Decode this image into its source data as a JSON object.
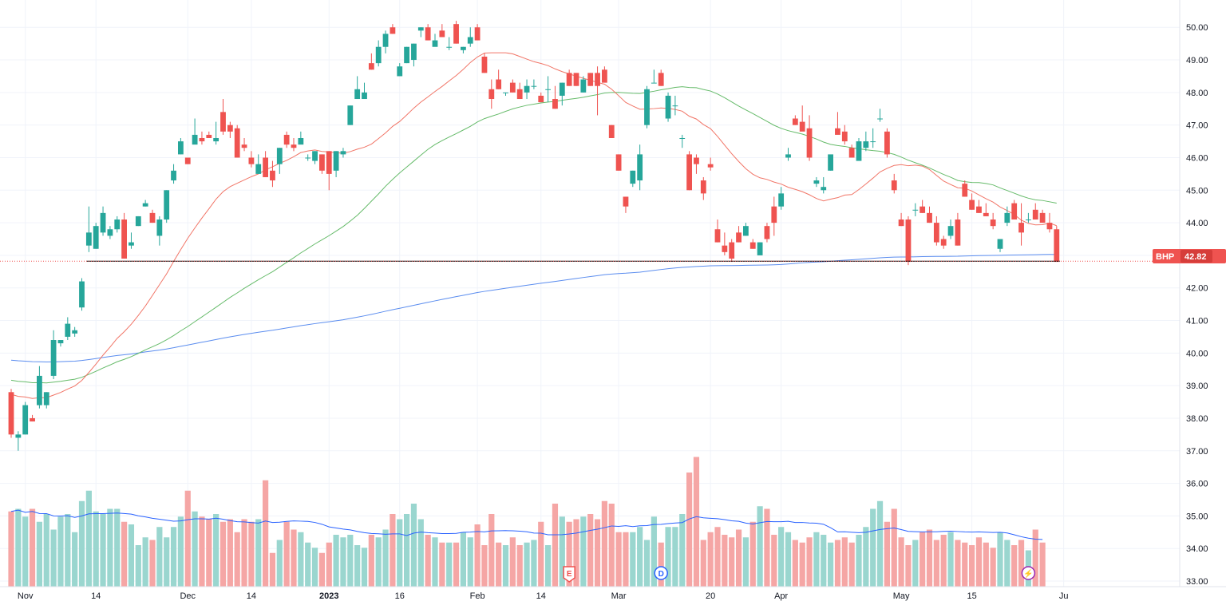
{
  "chart_data": {
    "type": "candlestick",
    "symbol": "BHP",
    "last_price": "42.82",
    "colors": {
      "up": "#26a69a",
      "down": "#ef5350",
      "up_volume": "#9ad6cf",
      "down_volume": "#f5a6a5",
      "ma_fast": "#f17567",
      "ma_mid": "#66bb6a",
      "ma_slow": "#5b8def",
      "volume_ma": "#2962ff",
      "grid": "#f0f3fa",
      "last_price_line": "#000000",
      "badge": "#ef5350"
    },
    "y_range": [
      33.0,
      50.3
    ],
    "y_ticks": [
      "50.00",
      "49.00",
      "48.00",
      "47.00",
      "46.00",
      "45.00",
      "44.00",
      "43.00",
      "42.00",
      "41.00",
      "40.00",
      "39.00",
      "38.00",
      "37.00",
      "36.00",
      "35.00",
      "34.00",
      "33.00"
    ],
    "x_ticks": [
      {
        "label": "Nov",
        "i": 2,
        "bold": false
      },
      {
        "label": "14",
        "i": 12,
        "bold": false
      },
      {
        "label": "Dec",
        "i": 25,
        "bold": false
      },
      {
        "label": "14",
        "i": 34,
        "bold": false
      },
      {
        "label": "2023",
        "i": 45,
        "bold": true
      },
      {
        "label": "16",
        "i": 55,
        "bold": false
      },
      {
        "label": "Feb",
        "i": 66,
        "bold": false
      },
      {
        "label": "14",
        "i": 75,
        "bold": false
      },
      {
        "label": "Mar",
        "i": 86,
        "bold": false
      },
      {
        "label": "20",
        "i": 99,
        "bold": false
      },
      {
        "label": "Apr",
        "i": 109,
        "bold": false
      },
      {
        "label": "May",
        "i": 126,
        "bold": false
      },
      {
        "label": "15",
        "i": 136,
        "bold": false
      },
      {
        "label": "Ju",
        "i": 149,
        "bold": false
      }
    ],
    "events": [
      {
        "label": "E",
        "i": 79
      },
      {
        "label": "D",
        "i": 92
      },
      {
        "label": "⚡",
        "i": 144
      }
    ],
    "ohlc": [
      [
        38.8,
        38.9,
        37.4,
        37.5
      ],
      [
        37.4,
        37.6,
        37.0,
        37.5
      ],
      [
        37.5,
        38.5,
        37.5,
        38.4
      ],
      [
        38.0,
        38.1,
        37.9,
        37.9
      ],
      [
        38.4,
        39.6,
        38.3,
        39.3
      ],
      [
        38.4,
        38.8,
        38.3,
        38.8
      ],
      [
        39.3,
        40.7,
        39.2,
        40.4
      ],
      [
        40.3,
        40.4,
        40.2,
        40.4
      ],
      [
        40.5,
        41.1,
        40.4,
        40.9
      ],
      [
        40.6,
        40.8,
        40.5,
        40.7
      ],
      [
        41.4,
        42.3,
        41.3,
        42.2
      ],
      [
        43.3,
        44.5,
        43.1,
        43.7
      ],
      [
        43.2,
        44.0,
        43.2,
        43.9
      ],
      [
        43.7,
        44.5,
        43.6,
        44.3
      ],
      [
        43.6,
        43.9,
        43.5,
        43.8
      ],
      [
        43.8,
        44.2,
        43.7,
        44.1
      ],
      [
        44.1,
        44.3,
        42.9,
        42.9
      ],
      [
        43.3,
        43.7,
        43.2,
        43.4
      ],
      [
        43.9,
        44.2,
        43.9,
        44.2
      ],
      [
        44.5,
        44.7,
        44.5,
        44.6
      ],
      [
        44.3,
        44.4,
        44.0,
        44.0
      ],
      [
        43.6,
        44.2,
        43.3,
        44.1
      ],
      [
        44.1,
        45.0,
        44.0,
        45.0
      ],
      [
        45.3,
        45.8,
        45.2,
        45.6
      ],
      [
        46.1,
        46.6,
        46.1,
        46.5
      ],
      [
        46.0,
        46.0,
        45.8,
        45.8
      ],
      [
        46.4,
        47.2,
        46.5,
        46.7
      ],
      [
        46.6,
        46.8,
        46.4,
        46.5
      ],
      [
        46.7,
        46.8,
        46.6,
        46.6
      ],
      [
        46.5,
        47.1,
        46.4,
        46.6
      ],
      [
        47.4,
        47.8,
        46.7,
        46.8
      ],
      [
        47.0,
        47.1,
        46.6,
        46.8
      ],
      [
        46.9,
        47.0,
        46.0,
        46.0
      ],
      [
        46.4,
        46.6,
        46.2,
        46.3
      ],
      [
        46.0,
        46.2,
        45.7,
        45.8
      ],
      [
        45.5,
        46.1,
        45.5,
        45.8
      ],
      [
        46.0,
        46.2,
        45.4,
        45.4
      ],
      [
        45.6,
        45.9,
        45.1,
        45.3
      ],
      [
        45.8,
        46.3,
        45.5,
        46.3
      ],
      [
        46.7,
        46.8,
        46.3,
        46.4
      ],
      [
        46.4,
        46.6,
        46.2,
        46.3
      ],
      [
        46.4,
        46.8,
        46.5,
        46.6
      ],
      [
        46.0,
        46.1,
        45.9,
        46.0
      ],
      [
        45.9,
        46.2,
        45.8,
        46.2
      ],
      [
        46.1,
        46.1,
        45.5,
        45.6
      ],
      [
        46.2,
        46.2,
        45.0,
        45.5
      ],
      [
        45.6,
        46.2,
        45.4,
        46.2
      ],
      [
        46.1,
        46.3,
        46.0,
        46.2
      ],
      [
        47.0,
        47.6,
        47.0,
        47.6
      ],
      [
        47.8,
        48.5,
        47.8,
        48.1
      ],
      [
        47.8,
        48.3,
        47.8,
        48.0
      ],
      [
        48.9,
        49.2,
        48.7,
        48.7
      ],
      [
        48.9,
        49.6,
        48.8,
        49.4
      ],
      [
        49.4,
        49.9,
        49.2,
        49.8
      ],
      [
        50.0,
        50.1,
        49.8,
        49.8
      ],
      [
        48.5,
        48.9,
        48.5,
        48.8
      ],
      [
        48.9,
        49.4,
        48.9,
        49.4
      ],
      [
        49.0,
        49.5,
        48.8,
        49.5
      ],
      [
        49.9,
        50.0,
        49.7,
        50.0
      ],
      [
        50.0,
        50.1,
        49.6,
        49.6
      ],
      [
        49.4,
        49.8,
        49.5,
        49.6
      ],
      [
        49.9,
        50.1,
        49.7,
        49.7
      ],
      [
        49.4,
        49.7,
        49.3,
        49.4
      ],
      [
        50.1,
        50.2,
        49.5,
        49.5
      ],
      [
        49.3,
        49.4,
        49.2,
        49.4
      ],
      [
        49.5,
        50.0,
        49.4,
        49.7
      ],
      [
        50.0,
        50.1,
        49.6,
        49.6
      ],
      [
        49.1,
        49.2,
        48.6,
        48.6
      ],
      [
        48.1,
        48.4,
        47.5,
        47.8
      ],
      [
        48.4,
        48.7,
        48.1,
        48.1
      ],
      [
        48.0,
        48.0,
        47.9,
        48.0
      ],
      [
        48.3,
        48.4,
        48.0,
        48.0
      ],
      [
        48.1,
        48.3,
        47.8,
        47.8
      ],
      [
        48.0,
        48.4,
        47.8,
        48.2
      ],
      [
        48.2,
        48.4,
        48.1,
        48.2
      ],
      [
        47.9,
        48.0,
        47.7,
        47.7
      ],
      [
        48.1,
        48.5,
        47.7,
        48.1
      ],
      [
        47.8,
        48.2,
        47.5,
        47.5
      ],
      [
        47.9,
        48.3,
        47.6,
        48.3
      ],
      [
        48.6,
        48.7,
        48.2,
        48.2
      ],
      [
        48.6,
        48.6,
        48.2,
        48.2
      ],
      [
        48.0,
        48.5,
        48.0,
        48.4
      ],
      [
        48.6,
        48.6,
        48.2,
        48.2
      ],
      [
        48.6,
        48.8,
        47.3,
        48.2
      ],
      [
        48.7,
        48.8,
        48.4,
        48.3
      ],
      [
        47.0,
        47.0,
        46.6,
        46.6
      ],
      [
        46.1,
        46.1,
        45.6,
        45.6
      ],
      [
        44.8,
        44.8,
        44.3,
        44.5
      ],
      [
        45.2,
        45.6,
        45.1,
        45.6
      ],
      [
        45.3,
        46.4,
        45.0,
        46.1
      ],
      [
        47.0,
        48.2,
        46.9,
        48.1
      ],
      [
        48.3,
        48.7,
        48.3,
        48.3
      ],
      [
        48.6,
        48.7,
        48.2,
        48.2
      ],
      [
        47.2,
        48.0,
        47.1,
        47.9
      ],
      [
        47.6,
        47.9,
        47.3,
        47.6
      ],
      [
        46.6,
        46.7,
        46.3,
        46.6
      ],
      [
        46.1,
        46.2,
        45.0,
        45.0
      ],
      [
        46.0,
        46.1,
        45.5,
        45.8
      ],
      [
        45.3,
        45.4,
        44.7,
        44.9
      ],
      [
        45.8,
        46.0,
        45.6,
        45.7
      ],
      [
        43.8,
        44.1,
        43.4,
        43.4
      ],
      [
        43.3,
        43.7,
        43.0,
        43.1
      ],
      [
        43.4,
        43.5,
        42.8,
        42.9
      ],
      [
        43.7,
        43.9,
        43.4,
        43.4
      ],
      [
        43.6,
        44.0,
        43.6,
        43.9
      ],
      [
        43.4,
        43.5,
        43.2,
        43.2
      ],
      [
        43.0,
        43.4,
        43.1,
        43.4
      ],
      [
        43.9,
        44.0,
        43.4,
        43.5
      ],
      [
        44.5,
        44.8,
        43.6,
        44.0
      ],
      [
        44.5,
        45.1,
        44.4,
        44.9
      ],
      [
        46.0,
        46.3,
        45.9,
        46.1
      ],
      [
        47.2,
        47.3,
        47.0,
        47.0
      ],
      [
        47.1,
        47.6,
        46.9,
        46.8
      ],
      [
        46.9,
        47.3,
        45.9,
        46.0
      ],
      [
        45.2,
        45.4,
        45.1,
        45.3
      ],
      [
        45.0,
        45.4,
        44.9,
        45.1
      ],
      [
        45.6,
        46.0,
        45.6,
        46.1
      ],
      [
        46.9,
        47.4,
        46.8,
        46.7
      ],
      [
        46.8,
        47.0,
        46.4,
        46.5
      ],
      [
        46.3,
        46.4,
        46.1,
        46.0
      ],
      [
        45.9,
        46.6,
        45.9,
        46.5
      ],
      [
        46.3,
        46.8,
        46.2,
        46.5
      ],
      [
        46.5,
        46.9,
        46.3,
        46.5
      ],
      [
        47.2,
        47.5,
        47.1,
        47.2
      ],
      [
        46.8,
        46.9,
        46.0,
        46.1
      ],
      [
        45.3,
        45.5,
        44.9,
        45.0
      ],
      [
        44.1,
        44.3,
        43.9,
        43.9
      ],
      [
        44.1,
        44.2,
        42.7,
        42.8
      ],
      [
        44.4,
        44.6,
        44.2,
        44.4
      ],
      [
        44.5,
        44.7,
        44.3,
        44.3
      ],
      [
        44.3,
        44.5,
        44.0,
        44.0
      ],
      [
        44.0,
        44.2,
        43.3,
        43.4
      ],
      [
        43.5,
        43.6,
        43.2,
        43.3
      ],
      [
        43.6,
        44.1,
        43.5,
        43.9
      ],
      [
        44.1,
        44.3,
        43.3,
        43.3
      ],
      [
        45.2,
        45.3,
        44.8,
        44.8
      ],
      [
        44.7,
        44.9,
        44.4,
        44.4
      ],
      [
        44.5,
        44.7,
        44.3,
        44.3
      ],
      [
        44.3,
        44.6,
        44.2,
        44.2
      ],
      [
        44.1,
        44.3,
        43.8,
        43.9
      ],
      [
        43.2,
        43.5,
        43.1,
        43.5
      ],
      [
        44.0,
        44.5,
        43.9,
        44.3
      ],
      [
        44.6,
        44.7,
        44.1,
        44.1
      ],
      [
        44.0,
        44.6,
        43.3,
        43.7
      ],
      [
        44.1,
        44.3,
        44.0,
        44.1
      ],
      [
        44.4,
        44.6,
        44.1,
        44.1
      ],
      [
        44.3,
        44.4,
        44.0,
        44.0
      ],
      [
        44.0,
        44.3,
        43.7,
        43.8
      ],
      [
        43.8,
        43.9,
        42.8,
        42.8
      ]
    ],
    "volume": [
      2.9,
      3.0,
      2.7,
      3.0,
      2.5,
      2.8,
      2.2,
      2.7,
      2.8,
      2.1,
      3.3,
      3.7,
      2.9,
      2.8,
      3.0,
      3.0,
      2.5,
      2.4,
      1.6,
      1.9,
      1.8,
      2.3,
      1.9,
      2.3,
      2.7,
      3.7,
      2.9,
      2.7,
      2.6,
      2.8,
      2.5,
      2.6,
      2.1,
      2.6,
      2.5,
      2.6,
      4.1,
      1.3,
      1.8,
      2.5,
      2.2,
      2.1,
      1.7,
      1.5,
      1.3,
      1.7,
      2.0,
      1.9,
      2.0,
      1.6,
      1.5,
      2.0,
      1.9,
      2.2,
      2.8,
      2.6,
      2.8,
      3.2,
      2.6,
      2.0,
      1.9,
      1.7,
      1.7,
      1.7,
      2.1,
      1.9,
      2.4,
      1.6,
      2.8,
      1.7,
      1.6,
      1.9,
      1.6,
      1.7,
      1.8,
      2.5,
      1.6,
      3.2,
      2.7,
      2.5,
      2.6,
      2.7,
      2.8,
      2.6,
      3.3,
      3.2,
      2.1,
      2.1,
      2.1,
      2.3,
      1.8,
      2.7,
      1.7,
      2.3,
      2.3,
      2.8,
      4.4,
      5.0,
      1.8,
      2.1,
      2.3,
      2.0,
      1.9,
      2.2,
      1.9,
      2.5,
      3.1,
      3.0,
      2.0,
      2.3,
      2.1,
      1.8,
      1.7,
      1.9,
      2.1,
      2.0,
      1.7,
      1.8,
      1.9,
      1.7,
      2.0,
      2.3,
      3.0,
      3.3,
      2.5,
      3.0,
      1.9,
      1.6,
      1.8,
      2.1,
      2.2,
      1.8,
      2.0,
      2.1,
      1.8,
      1.7,
      1.6,
      1.9,
      1.7,
      1.5,
      2.1,
      1.8,
      1.6,
      1.8,
      1.4,
      2.2,
      1.7
    ]
  }
}
